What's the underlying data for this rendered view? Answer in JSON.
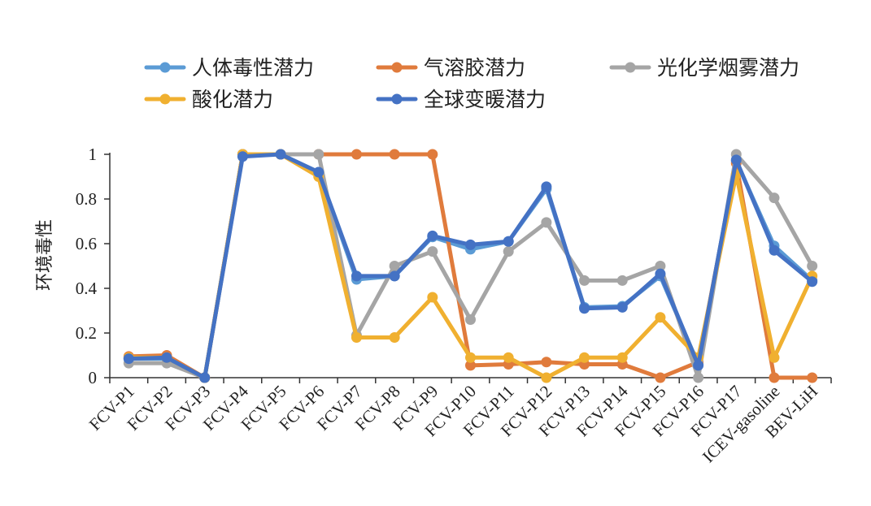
{
  "chart_data": {
    "type": "line",
    "ylabel": "环境毒性",
    "xlabel": "",
    "ylim": [
      0,
      1
    ],
    "yticks": [
      "0",
      "0.2",
      "0.4",
      "0.6",
      "0.8",
      "1"
    ],
    "ytick_values": [
      0,
      0.2,
      0.4,
      0.6,
      0.8,
      1
    ],
    "grid": false,
    "legend_position": "top",
    "categories": [
      "FCV-P1",
      "FCV-P2",
      "FCV-P3",
      "FCV-P4",
      "FCV-P5",
      "FCV-P6",
      "FCV-P7",
      "FCV-P8",
      "FCV-P9",
      "FCV-P10",
      "FCV-P11",
      "FCV-P12",
      "FCV-P13",
      "FCV-P14",
      "FCV-P15",
      "FCV-P16",
      "FCV-P17",
      "ICEV-gasoline",
      "BEV-LiH"
    ],
    "series": [
      {
        "name": "人体毒性潜力",
        "color": "#5B9BD5",
        "values": [
          0.085,
          0.085,
          0.0,
          1.0,
          1.0,
          0.92,
          0.44,
          0.455,
          0.63,
          0.575,
          0.61,
          0.845,
          0.315,
          0.32,
          0.455,
          0.06,
          0.97,
          0.59,
          0.435
        ]
      },
      {
        "name": "气溶胶潜力",
        "color": "#E07B3C",
        "values": [
          0.095,
          0.1,
          0.0,
          1.0,
          1.0,
          1.0,
          1.0,
          1.0,
          1.0,
          0.055,
          0.06,
          0.07,
          0.06,
          0.06,
          0.0,
          0.07,
          0.96,
          0.0,
          0.0
        ]
      },
      {
        "name": "光化学烟雾潜力",
        "color": "#A5A5A5",
        "values": [
          0.065,
          0.065,
          0.0,
          1.0,
          1.0,
          1.0,
          0.19,
          0.5,
          0.565,
          0.26,
          0.565,
          0.695,
          0.435,
          0.435,
          0.5,
          0.0,
          1.0,
          0.805,
          0.5
        ]
      },
      {
        "name": "酸化潜力",
        "color": "#F0B030",
        "values": [
          0.09,
          0.09,
          0.0,
          1.0,
          1.0,
          0.9,
          0.18,
          0.18,
          0.36,
          0.09,
          0.09,
          0.0,
          0.09,
          0.09,
          0.27,
          0.09,
          0.91,
          0.09,
          0.455
        ]
      },
      {
        "name": "全球变暖潜力",
        "color": "#4472C4",
        "values": [
          0.085,
          0.09,
          0.0,
          0.99,
          1.0,
          0.92,
          0.455,
          0.455,
          0.635,
          0.595,
          0.61,
          0.855,
          0.31,
          0.315,
          0.465,
          0.055,
          0.975,
          0.57,
          0.43
        ]
      }
    ]
  }
}
